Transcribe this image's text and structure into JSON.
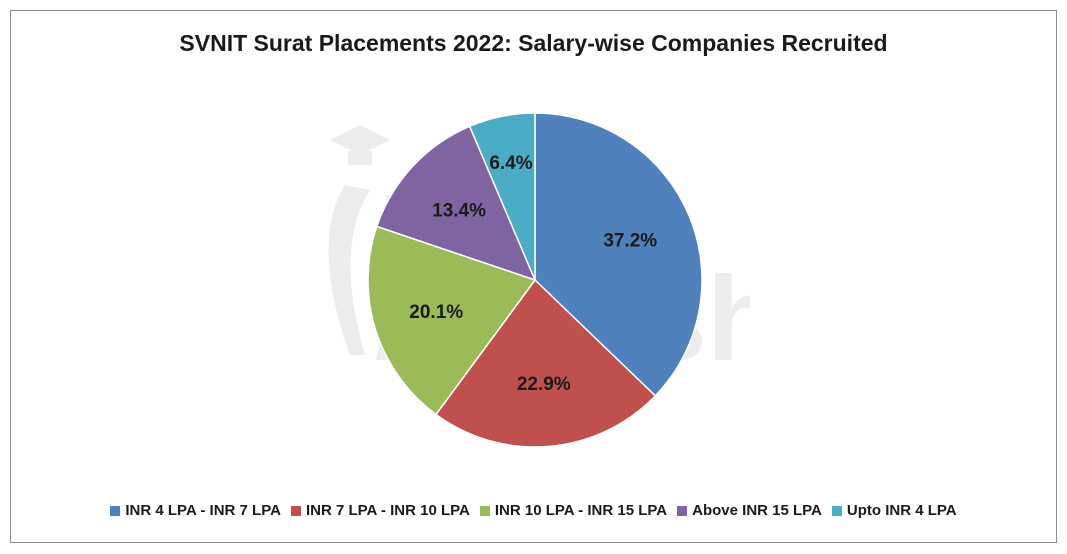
{
  "chart_data": {
    "type": "pie",
    "title": "SVNIT Surat Placements 2022: Salary-wise Companies Recruited",
    "categories": [
      "INR 4 LPA - INR 7 LPA",
      "INR 7 LPA - INR 10 LPA",
      "INR 10 LPA - INR 15 LPA",
      "Above INR 15 LPA",
      "Upto INR 4 LPA"
    ],
    "values": [
      37.2,
      22.9,
      20.1,
      13.4,
      6.4
    ],
    "labels": [
      "37.2%",
      "22.9%",
      "20.1%",
      "13.4%",
      "6.4%"
    ],
    "colors": [
      "#4f81bd",
      "#c0504d",
      "#9bbb59",
      "#8064a2",
      "#4bacc6"
    ],
    "legend_position": "bottom",
    "start_angle": "12 o'clock, clockwise"
  },
  "watermark": {
    "text": "shiksha"
  }
}
